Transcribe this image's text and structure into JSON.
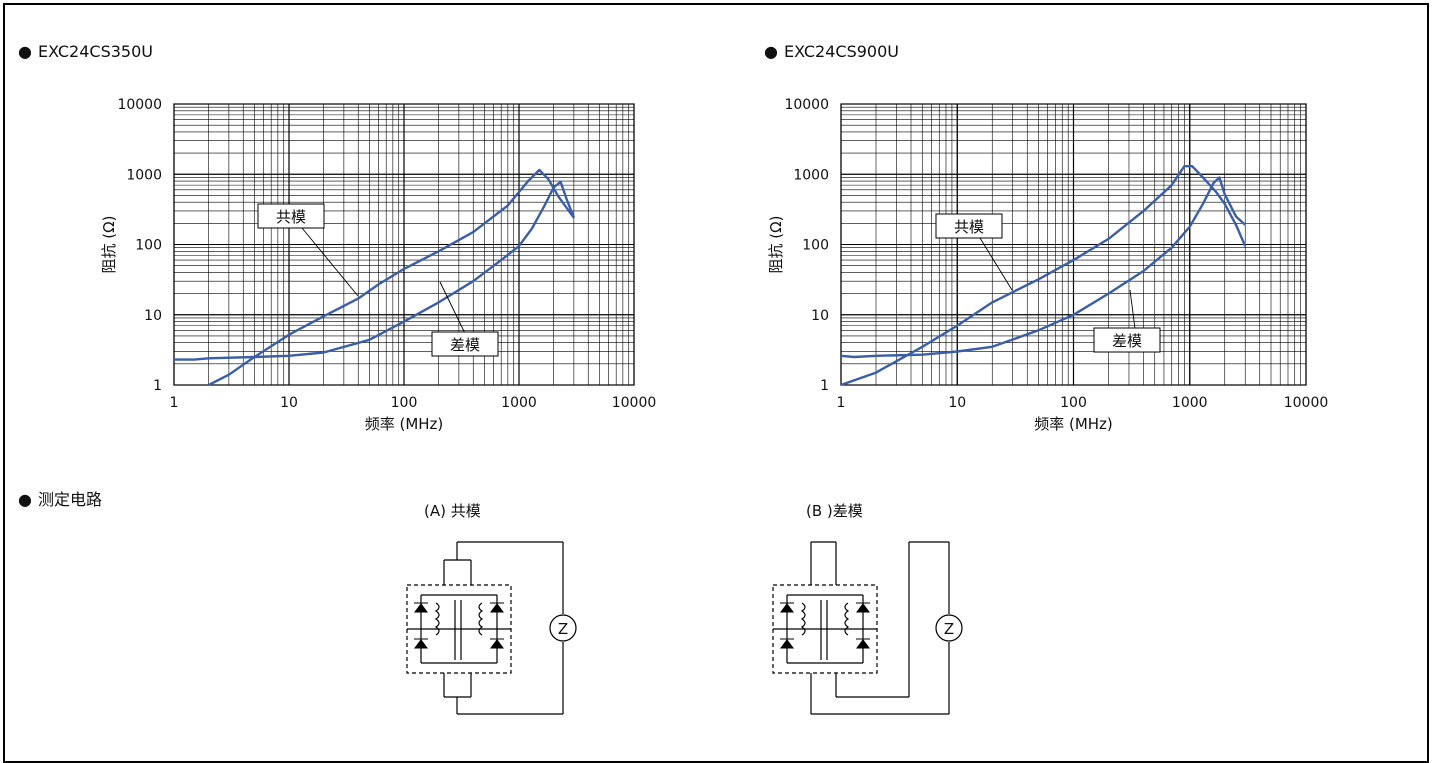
{
  "headings": {
    "chart1": "EXC24CS350U",
    "chart2": "EXC24CS900U",
    "circuit": "测定电路",
    "bullet": "●"
  },
  "circuits": {
    "a_title": "(A) 共模",
    "b_title": "(B )差模",
    "meter_label": "Z"
  },
  "colors": {
    "curve": "#3a5ea8",
    "grid": "#000000"
  },
  "chart_data": [
    {
      "type": "line",
      "title": "EXC24CS350U",
      "xlabel": "频率 (MHz)",
      "ylabel": "阻抗 (Ω)",
      "xscale": "log",
      "yscale": "log",
      "xlim": [
        1,
        10000
      ],
      "ylim": [
        1,
        10000
      ],
      "xticks": [
        "1",
        "10",
        "100",
        "1000",
        "10000"
      ],
      "yticks": [
        "1",
        "10",
        "100",
        "1000",
        "10000"
      ],
      "grid": true,
      "series": [
        {
          "name": "共模",
          "x": [
            2,
            3,
            5,
            10,
            20,
            40,
            60,
            100,
            200,
            400,
            800,
            1200,
            1500,
            1800,
            2200,
            3000
          ],
          "y": [
            1,
            1.4,
            2.5,
            5.2,
            9.5,
            17,
            27,
            45,
            80,
            150,
            360,
            800,
            1150,
            850,
            480,
            240
          ]
        },
        {
          "name": "差模",
          "x": [
            1,
            1.5,
            2,
            5,
            10,
            20,
            50,
            100,
            200,
            400,
            700,
            1000,
            1300,
            1700,
            2000,
            2300,
            2600,
            3000
          ],
          "y": [
            2.3,
            2.3,
            2.4,
            2.5,
            2.6,
            2.9,
            4.4,
            8,
            15,
            30,
            60,
            95,
            170,
            380,
            650,
            780,
            440,
            240
          ]
        }
      ],
      "annotations": [
        "共模",
        "差模"
      ]
    },
    {
      "type": "line",
      "title": "EXC24CS900U",
      "xlabel": "频率 (MHz)",
      "ylabel": "阻抗 (Ω)",
      "xscale": "log",
      "yscale": "log",
      "xlim": [
        1,
        10000
      ],
      "ylim": [
        1,
        10000
      ],
      "xticks": [
        "1",
        "10",
        "100",
        "1000",
        "10000"
      ],
      "yticks": [
        "1",
        "10",
        "100",
        "1000",
        "10000"
      ],
      "grid": true,
      "series": [
        {
          "name": "共模",
          "x": [
            1,
            2,
            5,
            10,
            20,
            50,
            100,
            200,
            400,
            700,
            900,
            1050,
            1300,
            1700,
            2000,
            2500,
            3000
          ],
          "y": [
            1,
            1.5,
            3.5,
            7,
            15,
            32,
            60,
            120,
            300,
            700,
            1300,
            1300,
            900,
            550,
            380,
            190,
            95
          ]
        },
        {
          "name": "差模",
          "x": [
            1,
            1.3,
            2,
            5,
            10,
            20,
            50,
            100,
            200,
            400,
            700,
            1000,
            1300,
            1600,
            1800,
            2000,
            2500,
            3000
          ],
          "y": [
            2.6,
            2.5,
            2.6,
            2.7,
            3,
            3.5,
            6,
            10,
            20,
            42,
            90,
            180,
            380,
            750,
            900,
            520,
            250,
            190
          ]
        }
      ],
      "annotations": [
        "共模",
        "差模"
      ]
    }
  ]
}
